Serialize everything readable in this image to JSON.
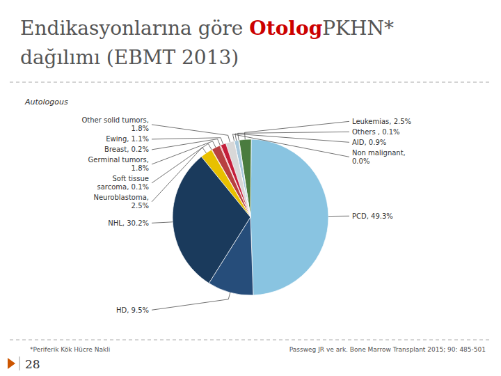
{
  "chart_data": {
    "type": "pie",
    "title": [
      {
        "text": "Endikasyonlarına göre "
      },
      {
        "text": "Otolog",
        "color": "#CC0000"
      },
      {
        "text": "PKHN*"
      }
    ],
    "subtitle": "dağılımı (EBMT 2013)",
    "annotations": [
      "Autologous",
      "*Periferik Kök Hücre Nakli",
      "Passweg JR ve ark. Bone Marrow Transplant 2015; 90: 485-501",
      "28"
    ],
    "categories": [
      "PCD, 49.3%",
      "Leukemias, 2.5%",
      "Others , 0.1%",
      "AID, 0.9%",
      "Non malignant,\n0.0%",
      "Other solid tumors,\n1.8%",
      "Ewing, 1.1%",
      "Breast, 0.2%",
      "Germinal tumors,\n1.8%",
      "Soft tissue\nsarcoma, 0.1%",
      "Neuroblastoma,\n2.5%",
      "NHL, 30.2%",
      "HD, 9.5%"
    ],
    "values": [
      49.3,
      2.5,
      0.1,
      0.9,
      0.01,
      1.8,
      1.1,
      0.2,
      1.8,
      0.1,
      2.5,
      30.2,
      9.5
    ],
    "colors": [
      "#89C4E1",
      "#4A7C3F",
      "#6B8E3A",
      "#A8C8DC",
      "#C8C8C8",
      "#D8D8D8",
      "#C41E3A",
      "#E87080",
      "#B84040",
      "#C8A000",
      "#E8C000",
      "#1A3A5C",
      "#264D7A"
    ]
  }
}
